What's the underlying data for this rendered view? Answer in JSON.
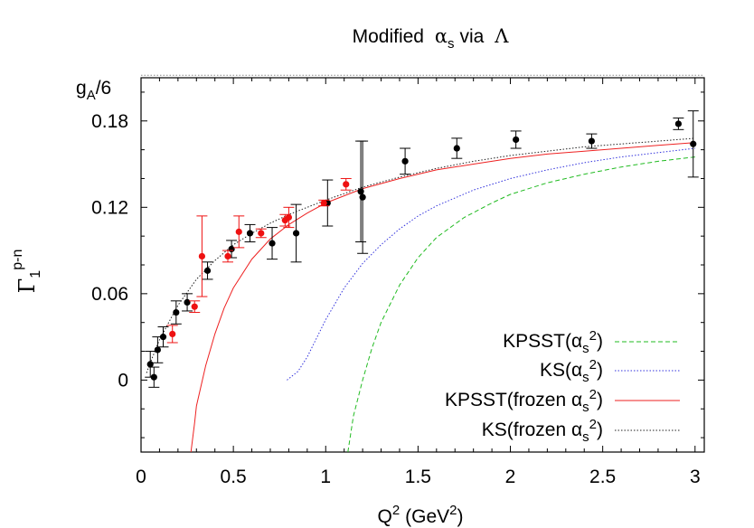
{
  "chart_data": {
    "type": "scatter",
    "title_prefix": "Modified",
    "title_alpha": "α",
    "title_alpha_sub": "s",
    "title_via": "via",
    "title_lambda": "Λ",
    "xlabel_main": "Q",
    "xlabel_sup": "2",
    "xlabel_unit_pre": "(GeV",
    "xlabel_unit_sup": "2",
    "xlabel_unit_post": ")",
    "ylabel_gamma": "Γ",
    "ylabel_sub": "1",
    "ylabel_sup": "p-n",
    "xlim": [
      0,
      3.05
    ],
    "ylim": [
      -0.05,
      0.21
    ],
    "x_ticks": [
      "0",
      "0.5",
      "1",
      "1.5",
      "2",
      "2.5",
      "3"
    ],
    "x_tick_values": [
      0,
      0.5,
      1,
      1.5,
      2,
      2.5,
      3
    ],
    "y_ticks": [
      "0",
      "0.06",
      "0.12",
      "0.18"
    ],
    "y_tick_values": [
      0,
      0.06,
      0.12,
      0.18
    ],
    "reference_line": {
      "label_main": "g",
      "label_sub": "A",
      "label_post": "/6",
      "value": 0.2117,
      "style": "dotted",
      "color": "#888888"
    },
    "series": [
      {
        "name": "KPSST(αs2)",
        "legend": {
          "pre": "KPSST(α",
          "sub": "s",
          "sup": "2",
          "post": ")"
        },
        "style": "dashed",
        "color": "#22bb22",
        "x": [
          1.12,
          1.15,
          1.2,
          1.25,
          1.3,
          1.4,
          1.5,
          1.6,
          1.75,
          1.9,
          2.0,
          2.2,
          2.4,
          2.6,
          2.8,
          3.0
        ],
        "y": [
          -0.05,
          -0.025,
          0.0,
          0.022,
          0.04,
          0.066,
          0.085,
          0.099,
          0.113,
          0.123,
          0.129,
          0.137,
          0.143,
          0.148,
          0.152,
          0.155
        ]
      },
      {
        "name": "KS(αs2)",
        "legend": {
          "pre": "KS(α",
          "sub": "s",
          "sup": "2",
          "post": ")"
        },
        "style": "dotted",
        "color": "#3333dd",
        "x": [
          0.79,
          0.85,
          0.9,
          1.0,
          1.1,
          1.2,
          1.3,
          1.4,
          1.5,
          1.6,
          1.8,
          2.0,
          2.2,
          2.4,
          2.6,
          2.8,
          3.0
        ],
        "y": [
          0.0,
          0.006,
          0.016,
          0.042,
          0.064,
          0.081,
          0.094,
          0.105,
          0.114,
          0.121,
          0.132,
          0.14,
          0.146,
          0.151,
          0.155,
          0.158,
          0.161
        ]
      },
      {
        "name": "KPSST(frozen αs2)",
        "legend": {
          "pre": "KPSST(frozen α",
          "sub": "s",
          "sup": "2",
          "post": ")"
        },
        "style": "solid",
        "color": "#ee2222",
        "x": [
          0.27,
          0.29,
          0.3,
          0.35,
          0.4,
          0.45,
          0.5,
          0.6,
          0.7,
          0.8,
          0.9,
          1.0,
          1.2,
          1.4,
          1.6,
          1.8,
          2.0,
          2.2,
          2.4,
          2.6,
          2.8,
          3.0
        ],
        "y": [
          -0.05,
          -0.03,
          -0.018,
          0.01,
          0.032,
          0.05,
          0.064,
          0.084,
          0.098,
          0.108,
          0.116,
          0.123,
          0.133,
          0.14,
          0.146,
          0.15,
          0.154,
          0.157,
          0.159,
          0.161,
          0.163,
          0.165
        ]
      },
      {
        "name": "KS(frozen αs2)",
        "legend": {
          "pre": "KS(frozen α",
          "sub": "s",
          "sup": "2",
          "post": ")"
        },
        "style": "dotted",
        "color": "#222222",
        "x": [
          0.03,
          0.05,
          0.1,
          0.15,
          0.2,
          0.3,
          0.4,
          0.5,
          0.6,
          0.7,
          0.8,
          0.9,
          1.0,
          1.2,
          1.4,
          1.6,
          1.8,
          2.0,
          2.2,
          2.4,
          2.6,
          2.8,
          3.0
        ],
        "y": [
          0.005,
          0.012,
          0.028,
          0.04,
          0.052,
          0.07,
          0.083,
          0.094,
          0.102,
          0.109,
          0.115,
          0.12,
          0.125,
          0.134,
          0.141,
          0.147,
          0.152,
          0.156,
          0.159,
          0.162,
          0.164,
          0.166,
          0.168
        ]
      }
    ],
    "points_black": [
      {
        "x": 0.05,
        "y": 0.011,
        "err": 0.009
      },
      {
        "x": 0.07,
        "y": 0.002,
        "err": 0.007
      },
      {
        "x": 0.09,
        "y": 0.021,
        "err": 0.009
      },
      {
        "x": 0.12,
        "y": 0.03,
        "err": 0.007
      },
      {
        "x": 0.19,
        "y": 0.047,
        "err": 0.008
      },
      {
        "x": 0.25,
        "y": 0.054,
        "err": 0.006
      },
      {
        "x": 0.36,
        "y": 0.076,
        "err": 0.006
      },
      {
        "x": 0.49,
        "y": 0.091,
        "err": 0.006
      },
      {
        "x": 0.59,
        "y": 0.102,
        "err": 0.006
      },
      {
        "x": 0.71,
        "y": 0.095,
        "err": 0.011
      },
      {
        "x": 0.84,
        "y": 0.102,
        "err": 0.02
      },
      {
        "x": 1.01,
        "y": 0.123,
        "err": 0.016
      },
      {
        "x": 1.19,
        "y": 0.131,
        "err": 0.035
      },
      {
        "x": 1.2,
        "y": 0.127,
        "err": 0.039
      },
      {
        "x": 1.43,
        "y": 0.152,
        "err": 0.009
      },
      {
        "x": 1.71,
        "y": 0.161,
        "err": 0.007
      },
      {
        "x": 2.03,
        "y": 0.167,
        "err": 0.006
      },
      {
        "x": 2.44,
        "y": 0.166,
        "err": 0.005
      },
      {
        "x": 2.91,
        "y": 0.178,
        "err": 0.004
      },
      {
        "x": 2.99,
        "y": 0.164,
        "err": 0.023
      }
    ],
    "points_red": [
      {
        "x": 0.17,
        "y": 0.032,
        "err": 0.006
      },
      {
        "x": 0.29,
        "y": 0.051,
        "err": 0.004
      },
      {
        "x": 0.33,
        "y": 0.086,
        "err": 0.028
      },
      {
        "x": 0.47,
        "y": 0.086,
        "err": 0.004
      },
      {
        "x": 0.53,
        "y": 0.103,
        "err": 0.011
      },
      {
        "x": 0.65,
        "y": 0.102,
        "err": 0.003
      },
      {
        "x": 0.78,
        "y": 0.111,
        "err": 0.004
      },
      {
        "x": 0.8,
        "y": 0.113,
        "err": 0.007
      },
      {
        "x": 0.99,
        "y": 0.123,
        "err": 0.002
      },
      {
        "x": 1.11,
        "y": 0.136,
        "err": 0.004
      }
    ]
  }
}
